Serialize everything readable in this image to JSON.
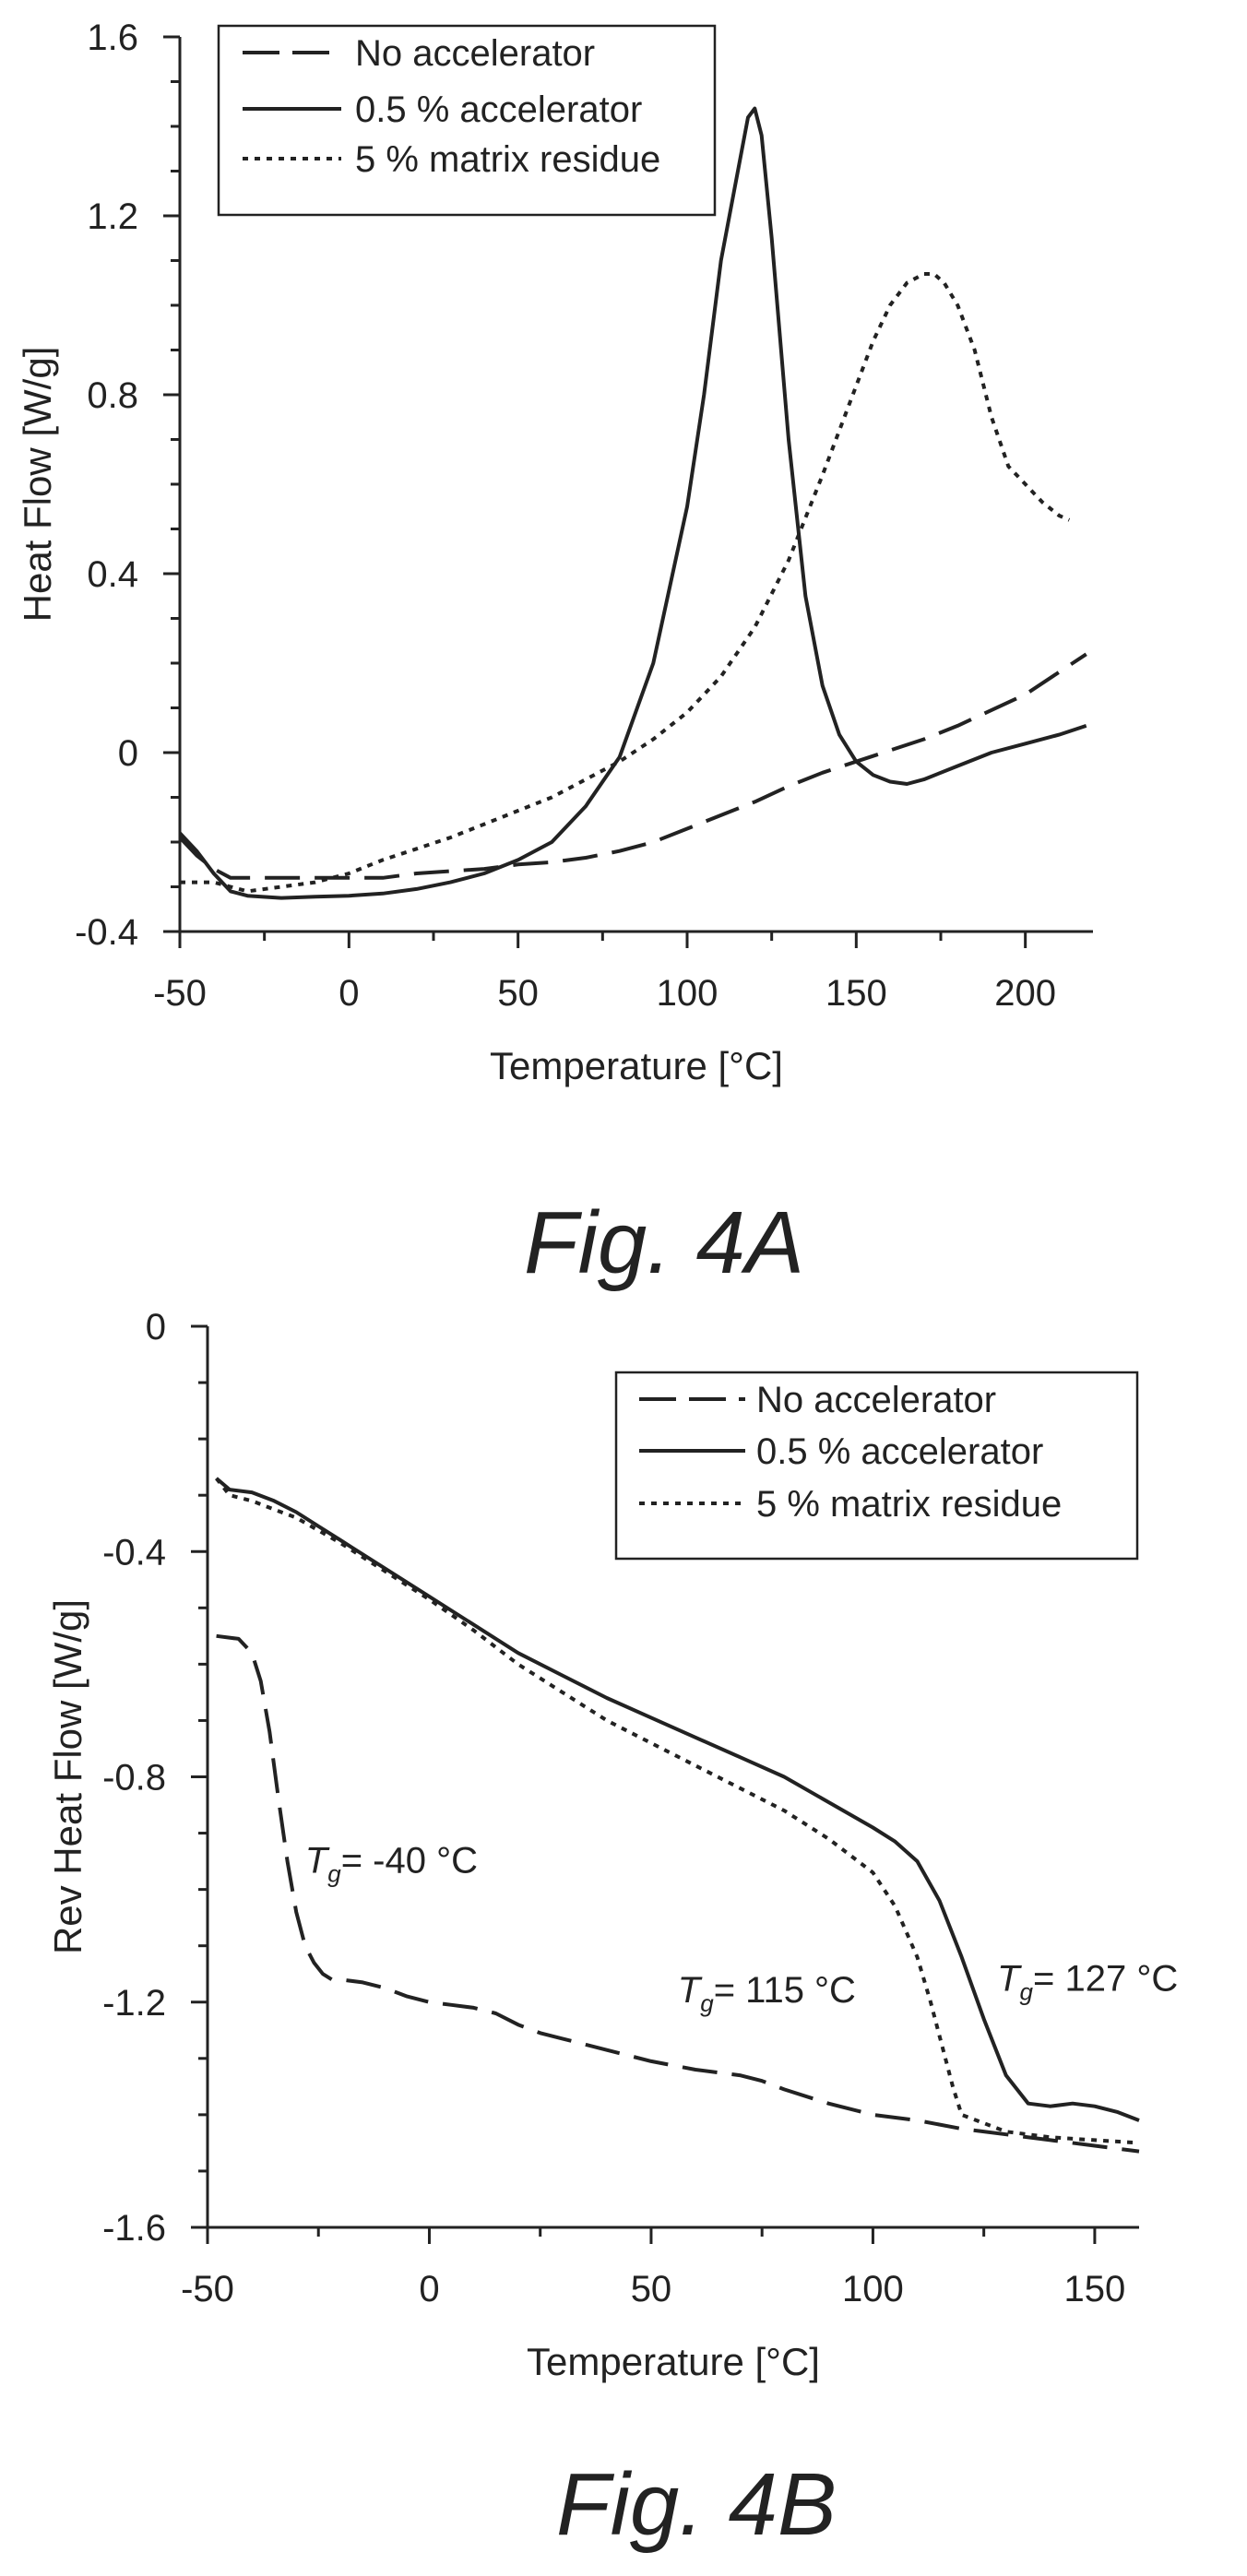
{
  "chart_data": [
    {
      "type": "line",
      "caption": "Fig. 4A",
      "title": "",
      "xlabel": "Temperature [°C]",
      "ylabel": "Heat Flow [W/g]",
      "xlim": [
        -50,
        220
      ],
      "ylim": [
        -0.4,
        1.6
      ],
      "xticks": [
        "-50",
        "0",
        "50",
        "100",
        "150",
        "200"
      ],
      "yticks": [
        "-0.4",
        "0",
        "0.4",
        "0.8",
        "1.2",
        "1.6"
      ],
      "grid": false,
      "legend_position": "top-left",
      "series": [
        {
          "name": "No accelerator",
          "style": "dashed",
          "x": [
            -50,
            -45,
            -40,
            -35,
            -30,
            -20,
            -10,
            0,
            10,
            20,
            30,
            40,
            50,
            60,
            70,
            80,
            90,
            100,
            110,
            120,
            130,
            140,
            150,
            160,
            170,
            180,
            190,
            200,
            210,
            218
          ],
          "y": [
            -0.19,
            -0.23,
            -0.26,
            -0.28,
            -0.28,
            -0.28,
            -0.28,
            -0.28,
            -0.28,
            -0.27,
            -0.265,
            -0.26,
            -0.25,
            -0.245,
            -0.235,
            -0.22,
            -0.2,
            -0.17,
            -0.14,
            -0.11,
            -0.075,
            -0.045,
            -0.02,
            0.005,
            0.03,
            0.06,
            0.095,
            0.13,
            0.18,
            0.22
          ]
        },
        {
          "name": "0.5 % accelerator",
          "style": "solid",
          "x": [
            -50,
            -45,
            -40,
            -35,
            -30,
            -20,
            -10,
            0,
            10,
            20,
            30,
            40,
            50,
            60,
            70,
            80,
            90,
            100,
            105,
            110,
            115,
            118,
            120,
            122,
            125,
            130,
            135,
            140,
            145,
            150,
            155,
            160,
            165,
            170,
            180,
            190,
            200,
            210,
            218
          ],
          "y": [
            -0.18,
            -0.22,
            -0.27,
            -0.31,
            -0.32,
            -0.325,
            -0.322,
            -0.32,
            -0.315,
            -0.305,
            -0.29,
            -0.27,
            -0.24,
            -0.2,
            -0.12,
            -0.01,
            0.2,
            0.55,
            0.8,
            1.1,
            1.3,
            1.42,
            1.44,
            1.38,
            1.15,
            0.7,
            0.35,
            0.15,
            0.04,
            -0.02,
            -0.05,
            -0.065,
            -0.07,
            -0.06,
            -0.03,
            0.0,
            0.02,
            0.04,
            0.06
          ]
        },
        {
          "name": "5 % matrix residue",
          "style": "dotted",
          "x": [
            -50,
            -45,
            -40,
            -35,
            -30,
            -20,
            -10,
            0,
            10,
            20,
            30,
            40,
            50,
            60,
            70,
            80,
            90,
            100,
            110,
            120,
            130,
            140,
            150,
            155,
            160,
            165,
            170,
            173,
            176,
            180,
            185,
            190,
            195,
            200,
            205,
            210,
            213
          ],
          "y": [
            -0.29,
            -0.29,
            -0.29,
            -0.3,
            -0.31,
            -0.3,
            -0.29,
            -0.27,
            -0.24,
            -0.215,
            -0.19,
            -0.16,
            -0.13,
            -0.1,
            -0.06,
            -0.02,
            0.03,
            0.09,
            0.17,
            0.28,
            0.43,
            0.62,
            0.82,
            0.92,
            1.0,
            1.05,
            1.07,
            1.07,
            1.05,
            1.0,
            0.9,
            0.75,
            0.64,
            0.6,
            0.56,
            0.53,
            0.52
          ]
        }
      ]
    },
    {
      "type": "line",
      "caption": "Fig. 4B",
      "title": "",
      "xlabel": "Temperature [°C]",
      "ylabel": "Rev Heat Flow [W/g]",
      "xlim": [
        -50,
        160
      ],
      "ylim": [
        -1.6,
        0
      ],
      "xticks": [
        "-50",
        "0",
        "50",
        "100",
        "150"
      ],
      "yticks": [
        "-1.6",
        "-1.2",
        "-0.8",
        "-0.4",
        "0"
      ],
      "grid": false,
      "legend_position": "top-right",
      "annotations": [
        {
          "symbol": "T",
          "subscript": "g",
          "text": "= -40 °C",
          "x": -28,
          "y": -0.97
        },
        {
          "symbol": "T",
          "subscript": "g",
          "text": "= 115 °C",
          "x": 56,
          "y": -1.2
        },
        {
          "symbol": "T",
          "subscript": "g",
          "text": "= 127 °C",
          "x": 128,
          "y": -1.18
        }
      ],
      "series": [
        {
          "name": "No accelerator",
          "style": "dashed",
          "x": [
            -48,
            -43,
            -40,
            -38,
            -36,
            -34,
            -32,
            -30,
            -28,
            -26,
            -24,
            -22,
            -20,
            -15,
            -10,
            -5,
            0,
            5,
            10,
            15,
            20,
            25,
            30,
            40,
            50,
            60,
            70,
            75,
            80,
            90,
            100,
            110,
            120,
            130,
            140,
            150,
            160
          ],
          "y": [
            -0.55,
            -0.555,
            -0.58,
            -0.63,
            -0.72,
            -0.84,
            -0.95,
            -1.04,
            -1.1,
            -1.13,
            -1.15,
            -1.16,
            -1.16,
            -1.165,
            -1.175,
            -1.19,
            -1.2,
            -1.205,
            -1.21,
            -1.22,
            -1.24,
            -1.255,
            -1.265,
            -1.285,
            -1.305,
            -1.32,
            -1.33,
            -1.34,
            -1.355,
            -1.38,
            -1.4,
            -1.41,
            -1.425,
            -1.435,
            -1.445,
            -1.455,
            -1.465
          ]
        },
        {
          "name": "0.5 % accelerator",
          "style": "solid",
          "x": [
            -48,
            -45,
            -40,
            -35,
            -30,
            -25,
            -20,
            -10,
            0,
            10,
            20,
            30,
            40,
            50,
            60,
            70,
            80,
            90,
            100,
            105,
            110,
            115,
            120,
            125,
            130,
            135,
            140,
            145,
            150,
            155,
            160
          ],
          "y": [
            -0.27,
            -0.29,
            -0.295,
            -0.31,
            -0.33,
            -0.355,
            -0.38,
            -0.43,
            -0.48,
            -0.53,
            -0.58,
            -0.62,
            -0.66,
            -0.695,
            -0.73,
            -0.765,
            -0.8,
            -0.845,
            -0.89,
            -0.915,
            -0.95,
            -1.02,
            -1.12,
            -1.23,
            -1.33,
            -1.38,
            -1.385,
            -1.38,
            -1.385,
            -1.395,
            -1.41
          ]
        },
        {
          "name": "5 % matrix residue",
          "style": "dotted",
          "x": [
            -48,
            -45,
            -40,
            -35,
            -30,
            -20,
            -10,
            0,
            10,
            20,
            30,
            40,
            50,
            60,
            70,
            80,
            90,
            95,
            100,
            105,
            110,
            113,
            116,
            118,
            120,
            125,
            130,
            140,
            150,
            160
          ],
          "y": [
            -0.27,
            -0.3,
            -0.31,
            -0.325,
            -0.34,
            -0.385,
            -0.435,
            -0.485,
            -0.54,
            -0.6,
            -0.65,
            -0.7,
            -0.74,
            -0.78,
            -0.82,
            -0.86,
            -0.91,
            -0.94,
            -0.97,
            -1.03,
            -1.12,
            -1.2,
            -1.29,
            -1.35,
            -1.4,
            -1.415,
            -1.43,
            -1.44,
            -1.445,
            -1.45
          ]
        }
      ]
    }
  ]
}
